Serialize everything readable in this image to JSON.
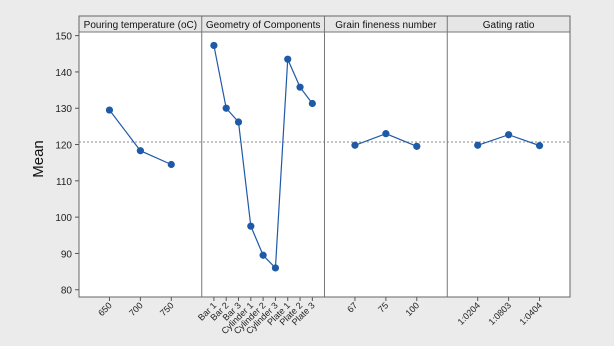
{
  "chart_data": {
    "type": "line",
    "ylabel": "Mean",
    "ylim": [
      78,
      151
    ],
    "yticks": [
      80,
      90,
      100,
      110,
      120,
      130,
      140,
      150
    ],
    "reference_line": 120.7,
    "grid": false,
    "panels": [
      {
        "title": "Pouring temperature (oC)",
        "categories": [
          "650",
          "700",
          "750"
        ],
        "values": [
          129.5,
          118.3,
          114.5
        ]
      },
      {
        "title": "Geometry of Components",
        "categories": [
          "Bar 1",
          "Bar 2",
          "Bar 3",
          "Cylinder 1",
          "Cylinder 2",
          "Cylinder 3",
          "Plate 1",
          "Plate 2",
          "Plate 3"
        ],
        "values": [
          147.3,
          130.0,
          126.2,
          97.5,
          89.5,
          86.0,
          143.5,
          135.8,
          131.3
        ]
      },
      {
        "title": "Grain fineness number",
        "categories": [
          "67",
          "75",
          "100"
        ],
        "values": [
          119.8,
          123.0,
          119.5
        ]
      },
      {
        "title": "Gating ratio",
        "categories": [
          "1:0204",
          "1:0803",
          "1:0404"
        ],
        "values": [
          119.8,
          122.7,
          119.7
        ]
      }
    ],
    "colors": {
      "series": "#1f5aa6",
      "background": "#ebebeb",
      "plot": "#ffffff",
      "header": "#e6e6e6",
      "reference": "#8a8a8a"
    }
  }
}
